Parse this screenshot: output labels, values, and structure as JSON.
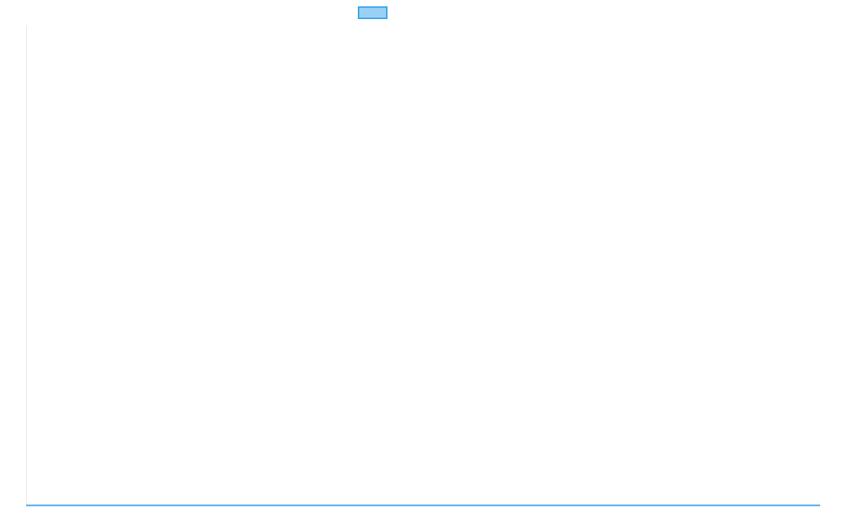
{
  "chart_data": {
    "type": "line",
    "title": "",
    "xlabel": "",
    "ylabel": "",
    "legend": {
      "placement": "top",
      "entries": [
        {
          "label": "",
          "color": "#36a2eb",
          "fill": "#9ad0f5"
        }
      ]
    },
    "grid": false,
    "series": [
      {
        "color": "#36a2eb",
        "values": []
      }
    ],
    "axis_color": "#e5e5e5"
  }
}
